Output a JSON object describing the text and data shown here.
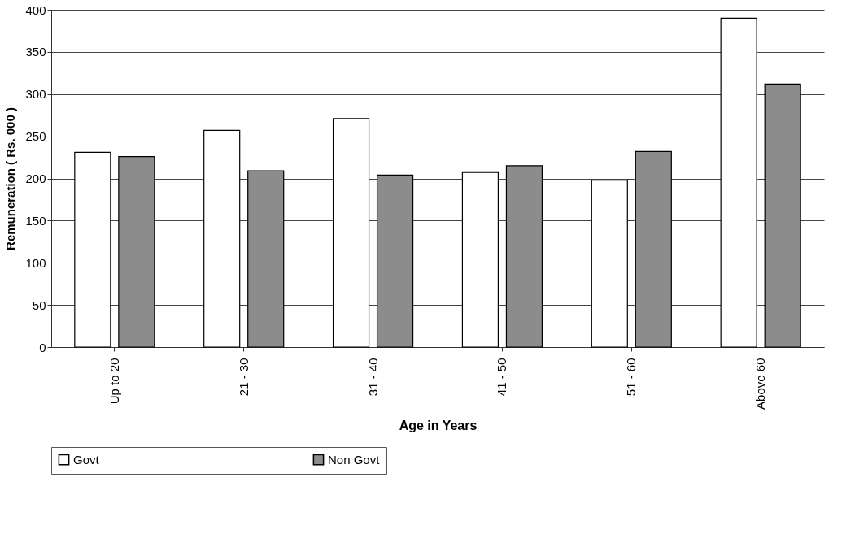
{
  "chart_data": {
    "type": "bar",
    "xlabel": "Age in Years",
    "ylabel": "Remuneration ( Rs. 000 )",
    "categories": [
      "Up to 20",
      "21 - 30",
      "31 - 40",
      "41 - 50",
      "51 - 60",
      "Above 60"
    ],
    "series": [
      {
        "name": "Govt",
        "color": "#ffffff",
        "values": [
          231,
          257,
          271,
          207,
          198,
          390
        ]
      },
      {
        "name": "Non Govt",
        "color": "#8c8c8c",
        "values": [
          226,
          209,
          204,
          215,
          232,
          312
        ]
      }
    ],
    "ylim": [
      0,
      400
    ],
    "yticks": [
      0,
      50,
      100,
      150,
      200,
      250,
      300,
      350,
      400
    ],
    "grid": "y",
    "legend": "bottom"
  }
}
